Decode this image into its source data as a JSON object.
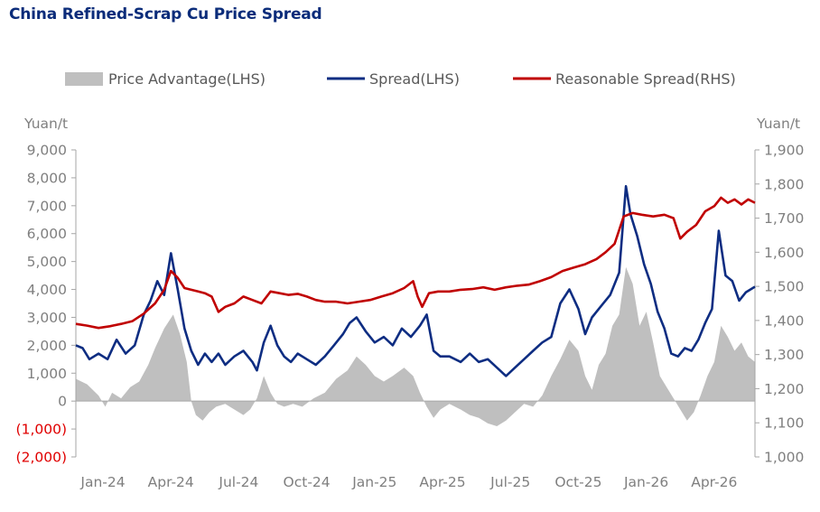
{
  "title": "China Refined-Scrap Cu Price Spread",
  "chart_data": {
    "type": "line",
    "title": "China Refined-Scrap Cu Price Spread",
    "legend_position": "top",
    "left_axis": {
      "unit": "Yuan/t",
      "min": -2000,
      "max": 9000,
      "ticks": [
        9000,
        8000,
        7000,
        6000,
        5000,
        4000,
        3000,
        2000,
        1000,
        0,
        -1000,
        -2000
      ],
      "tick_labels": [
        "9,000",
        "8,000",
        "7,000",
        "6,000",
        "5,000",
        "4,000",
        "3,000",
        "2,000",
        "1,000",
        "0",
        "(1,000)",
        "(2,000)"
      ]
    },
    "right_axis": {
      "unit": "Yuan/t",
      "min": 1000,
      "max": 1900,
      "ticks": [
        1900,
        1800,
        1700,
        1600,
        1500,
        1400,
        1300,
        1200,
        1100,
        1000
      ],
      "tick_labels": [
        "1,900",
        "1,800",
        "1,700",
        "1,600",
        "1,500",
        "1,400",
        "1,300",
        "1,200",
        "1,100",
        "1,000"
      ]
    },
    "x_axis": {
      "tick_labels": [
        "Jan-24",
        "Apr-24",
        "Jul-24",
        "Oct-24",
        "Jan-25",
        "Apr-25",
        "Jul-25",
        "Oct-25",
        "Jan-26",
        "Apr-26"
      ],
      "tick_month_index": [
        0,
        3,
        6,
        9,
        12,
        15,
        18,
        21,
        24,
        27
      ],
      "end_month_index": 30
    },
    "series": [
      {
        "name": "Price Advantage(LHS)",
        "kind": "area",
        "axis": "left",
        "color": "#bfbfbf",
        "points": [
          [
            0,
            800
          ],
          [
            0.5,
            600
          ],
          [
            1,
            200
          ],
          [
            1.3,
            -200
          ],
          [
            1.6,
            300
          ],
          [
            2,
            100
          ],
          [
            2.4,
            500
          ],
          [
            2.8,
            700
          ],
          [
            3.2,
            1300
          ],
          [
            3.5,
            1900
          ],
          [
            3.9,
            2600
          ],
          [
            4.3,
            3100
          ],
          [
            4.6,
            2400
          ],
          [
            4.9,
            1400
          ],
          [
            5.1,
            0
          ],
          [
            5.3,
            -500
          ],
          [
            5.6,
            -700
          ],
          [
            5.9,
            -400
          ],
          [
            6.2,
            -200
          ],
          [
            6.6,
            -100
          ],
          [
            7,
            -300
          ],
          [
            7.4,
            -500
          ],
          [
            7.7,
            -300
          ],
          [
            8,
            100
          ],
          [
            8.3,
            900
          ],
          [
            8.6,
            300
          ],
          [
            8.9,
            -100
          ],
          [
            9.2,
            -200
          ],
          [
            9.6,
            -100
          ],
          [
            10,
            -200
          ],
          [
            10.5,
            100
          ],
          [
            11,
            300
          ],
          [
            11.5,
            800
          ],
          [
            12,
            1100
          ],
          [
            12.4,
            1600
          ],
          [
            12.8,
            1300
          ],
          [
            13.2,
            900
          ],
          [
            13.6,
            700
          ],
          [
            14,
            900
          ],
          [
            14.5,
            1200
          ],
          [
            14.9,
            900
          ],
          [
            15.2,
            300
          ],
          [
            15.5,
            -200
          ],
          [
            15.8,
            -600
          ],
          [
            16.1,
            -300
          ],
          [
            16.5,
            -100
          ],
          [
            17,
            -300
          ],
          [
            17.4,
            -500
          ],
          [
            17.8,
            -600
          ],
          [
            18.2,
            -800
          ],
          [
            18.6,
            -900
          ],
          [
            19,
            -700
          ],
          [
            19.4,
            -400
          ],
          [
            19.8,
            -100
          ],
          [
            20.2,
            -200
          ],
          [
            20.6,
            200
          ],
          [
            21,
            900
          ],
          [
            21.4,
            1500
          ],
          [
            21.8,
            2200
          ],
          [
            22.2,
            1800
          ],
          [
            22.5,
            900
          ],
          [
            22.8,
            400
          ],
          [
            23.1,
            1300
          ],
          [
            23.4,
            1700
          ],
          [
            23.7,
            2700
          ],
          [
            24,
            3100
          ],
          [
            24.3,
            4800
          ],
          [
            24.6,
            4200
          ],
          [
            24.9,
            2700
          ],
          [
            25.2,
            3200
          ],
          [
            25.5,
            2100
          ],
          [
            25.8,
            900
          ],
          [
            26.1,
            500
          ],
          [
            26.4,
            100
          ],
          [
            26.7,
            -300
          ],
          [
            27,
            -700
          ],
          [
            27.3,
            -400
          ],
          [
            27.6,
            200
          ],
          [
            27.9,
            900
          ],
          [
            28.2,
            1400
          ],
          [
            28.5,
            2700
          ],
          [
            28.8,
            2300
          ],
          [
            29.1,
            1800
          ],
          [
            29.4,
            2100
          ],
          [
            29.7,
            1600
          ],
          [
            30,
            1400
          ]
        ]
      },
      {
        "name": "Spread(LHS)",
        "kind": "line",
        "axis": "left",
        "color": "#0e2d82",
        "points": [
          [
            0,
            2000
          ],
          [
            0.3,
            1900
          ],
          [
            0.6,
            1500
          ],
          [
            1,
            1700
          ],
          [
            1.4,
            1500
          ],
          [
            1.8,
            2200
          ],
          [
            2.2,
            1700
          ],
          [
            2.6,
            2000
          ],
          [
            3,
            3100
          ],
          [
            3.3,
            3600
          ],
          [
            3.6,
            4300
          ],
          [
            3.9,
            3800
          ],
          [
            4.2,
            5300
          ],
          [
            4.5,
            4000
          ],
          [
            4.8,
            2600
          ],
          [
            5.1,
            1800
          ],
          [
            5.4,
            1300
          ],
          [
            5.7,
            1700
          ],
          [
            6,
            1400
          ],
          [
            6.3,
            1700
          ],
          [
            6.6,
            1300
          ],
          [
            7,
            1600
          ],
          [
            7.4,
            1800
          ],
          [
            7.8,
            1400
          ],
          [
            8,
            1100
          ],
          [
            8.3,
            2100
          ],
          [
            8.6,
            2700
          ],
          [
            8.9,
            2000
          ],
          [
            9.2,
            1600
          ],
          [
            9.5,
            1400
          ],
          [
            9.8,
            1700
          ],
          [
            10.2,
            1500
          ],
          [
            10.6,
            1300
          ],
          [
            11,
            1600
          ],
          [
            11.4,
            2000
          ],
          [
            11.8,
            2400
          ],
          [
            12.1,
            2800
          ],
          [
            12.4,
            3000
          ],
          [
            12.8,
            2500
          ],
          [
            13.2,
            2100
          ],
          [
            13.6,
            2300
          ],
          [
            14,
            2000
          ],
          [
            14.4,
            2600
          ],
          [
            14.8,
            2300
          ],
          [
            15.2,
            2700
          ],
          [
            15.5,
            3100
          ],
          [
            15.8,
            1800
          ],
          [
            16.1,
            1600
          ],
          [
            16.5,
            1600
          ],
          [
            17,
            1400
          ],
          [
            17.4,
            1700
          ],
          [
            17.8,
            1400
          ],
          [
            18.2,
            1500
          ],
          [
            18.6,
            1200
          ],
          [
            19,
            900
          ],
          [
            19.4,
            1200
          ],
          [
            19.8,
            1500
          ],
          [
            20.2,
            1800
          ],
          [
            20.6,
            2100
          ],
          [
            21,
            2300
          ],
          [
            21.4,
            3500
          ],
          [
            21.8,
            4000
          ],
          [
            22.2,
            3300
          ],
          [
            22.5,
            2400
          ],
          [
            22.8,
            3000
          ],
          [
            23.2,
            3400
          ],
          [
            23.6,
            3800
          ],
          [
            24,
            4600
          ],
          [
            24.3,
            7700
          ],
          [
            24.5,
            6700
          ],
          [
            24.8,
            5900
          ],
          [
            25.1,
            4900
          ],
          [
            25.4,
            4200
          ],
          [
            25.7,
            3200
          ],
          [
            26,
            2600
          ],
          [
            26.3,
            1700
          ],
          [
            26.6,
            1600
          ],
          [
            26.9,
            1900
          ],
          [
            27.2,
            1800
          ],
          [
            27.5,
            2200
          ],
          [
            27.8,
            2800
          ],
          [
            28.1,
            3300
          ],
          [
            28.4,
            6100
          ],
          [
            28.7,
            4500
          ],
          [
            29,
            4300
          ],
          [
            29.3,
            3600
          ],
          [
            29.6,
            3900
          ],
          [
            30,
            4100
          ]
        ]
      },
      {
        "name": "Reasonable Spread(RHS)",
        "kind": "line",
        "axis": "right",
        "color": "#c00000",
        "points": [
          [
            0,
            1390
          ],
          [
            0.5,
            1385
          ],
          [
            1,
            1378
          ],
          [
            1.5,
            1383
          ],
          [
            2,
            1390
          ],
          [
            2.5,
            1398
          ],
          [
            3,
            1420
          ],
          [
            3.5,
            1450
          ],
          [
            3.9,
            1490
          ],
          [
            4.2,
            1545
          ],
          [
            4.5,
            1525
          ],
          [
            4.8,
            1495
          ],
          [
            5.1,
            1490
          ],
          [
            5.4,
            1485
          ],
          [
            5.7,
            1480
          ],
          [
            6,
            1470
          ],
          [
            6.3,
            1425
          ],
          [
            6.6,
            1440
          ],
          [
            7,
            1450
          ],
          [
            7.4,
            1470
          ],
          [
            7.8,
            1460
          ],
          [
            8.2,
            1450
          ],
          [
            8.6,
            1485
          ],
          [
            9,
            1480
          ],
          [
            9.4,
            1475
          ],
          [
            9.8,
            1478
          ],
          [
            10.2,
            1470
          ],
          [
            10.6,
            1460
          ],
          [
            11,
            1455
          ],
          [
            11.5,
            1455
          ],
          [
            12,
            1450
          ],
          [
            12.5,
            1455
          ],
          [
            13,
            1460
          ],
          [
            13.5,
            1470
          ],
          [
            14,
            1480
          ],
          [
            14.5,
            1495
          ],
          [
            14.9,
            1515
          ],
          [
            15.1,
            1470
          ],
          [
            15.3,
            1440
          ],
          [
            15.6,
            1480
          ],
          [
            16,
            1485
          ],
          [
            16.5,
            1485
          ],
          [
            17,
            1490
          ],
          [
            17.5,
            1492
          ],
          [
            18,
            1497
          ],
          [
            18.5,
            1490
          ],
          [
            19,
            1497
          ],
          [
            19.5,
            1502
          ],
          [
            20,
            1505
          ],
          [
            20.5,
            1515
          ],
          [
            21,
            1527
          ],
          [
            21.5,
            1545
          ],
          [
            22,
            1555
          ],
          [
            22.5,
            1565
          ],
          [
            23,
            1580
          ],
          [
            23.4,
            1600
          ],
          [
            23.8,
            1625
          ],
          [
            24.2,
            1705
          ],
          [
            24.6,
            1715
          ],
          [
            25,
            1710
          ],
          [
            25.5,
            1705
          ],
          [
            26,
            1710
          ],
          [
            26.4,
            1700
          ],
          [
            26.7,
            1640
          ],
          [
            27,
            1660
          ],
          [
            27.4,
            1680
          ],
          [
            27.8,
            1720
          ],
          [
            28.2,
            1735
          ],
          [
            28.5,
            1760
          ],
          [
            28.8,
            1745
          ],
          [
            29.1,
            1755
          ],
          [
            29.4,
            1740
          ],
          [
            29.7,
            1755
          ],
          [
            30,
            1745
          ]
        ]
      }
    ]
  }
}
